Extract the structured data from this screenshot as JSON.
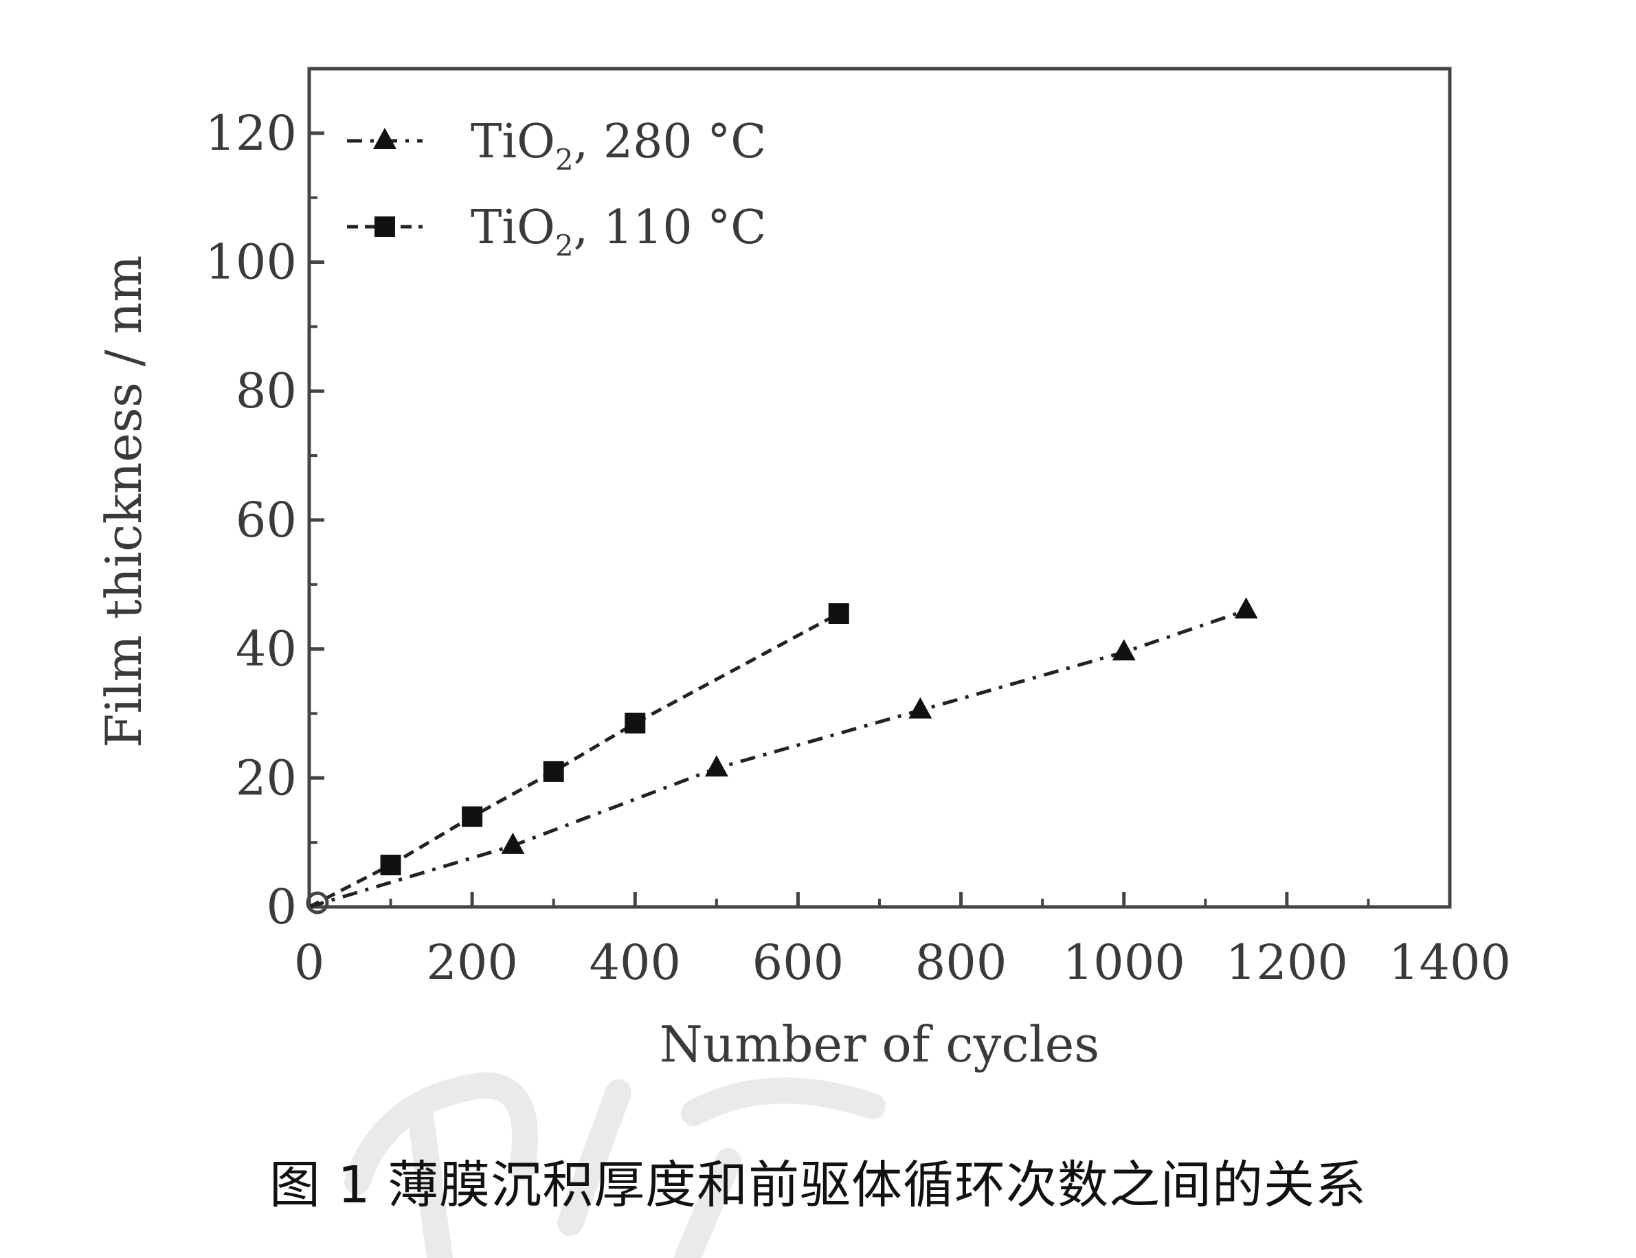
{
  "caption": "图 1  薄膜沉积厚度和前驱体循环次数之间的关系",
  "chart_data": {
    "type": "line",
    "xlabel": "Number of cycles",
    "ylabel": "Film thickness / nm",
    "xlim": [
      0,
      1400
    ],
    "ylim": [
      0,
      130
    ],
    "xticks": [
      0,
      200,
      400,
      600,
      800,
      1000,
      1200,
      1400
    ],
    "yticks": [
      0,
      20,
      40,
      60,
      80,
      100,
      120
    ],
    "grid": false,
    "legend_position": "top-left",
    "series": [
      {
        "name": "TiO2, 280 °C",
        "label_main": "TiO",
        "label_sub": "2",
        "label_tail": ", 280 °C",
        "marker": "triangle",
        "line_style": "dash-dot",
        "x": [
          0,
          250,
          500,
          750,
          1000,
          1150
        ],
        "y": [
          0,
          9.5,
          21.5,
          30.5,
          39.5,
          46
        ]
      },
      {
        "name": "TiO2, 110 °C",
        "label_main": "TiO",
        "label_sub": "2",
        "label_tail": ", 110 °C",
        "marker": "square",
        "line_style": "dashed",
        "x": [
          0,
          100,
          200,
          300,
          400,
          650
        ],
        "y": [
          0,
          6.5,
          14,
          21,
          28.5,
          45.5
        ]
      }
    ]
  }
}
